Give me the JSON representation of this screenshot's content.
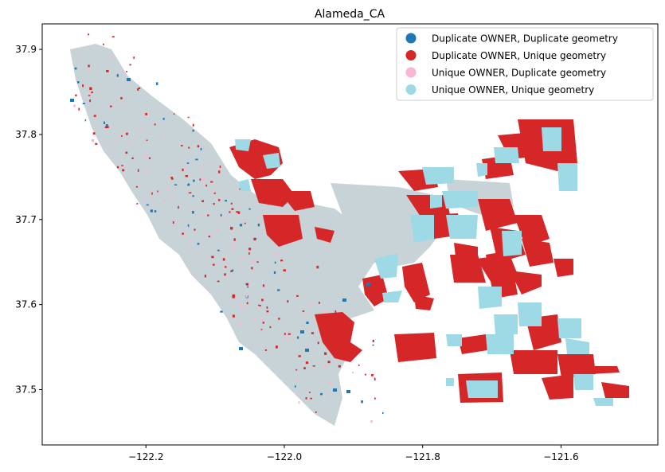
{
  "title": "Alameda_CA",
  "axes": {
    "x_ticks": [
      {
        "value": -122.2,
        "label": "−122.2"
      },
      {
        "value": -122.0,
        "label": "−122.0"
      },
      {
        "value": -121.8,
        "label": "−121.8"
      },
      {
        "value": -121.6,
        "label": "−121.6"
      }
    ],
    "y_ticks": [
      {
        "value": 37.5,
        "label": "37.5"
      },
      {
        "value": 37.6,
        "label": "37.6"
      },
      {
        "value": 37.7,
        "label": "37.7"
      },
      {
        "value": 37.8,
        "label": "37.8"
      },
      {
        "value": 37.9,
        "label": "37.9"
      }
    ],
    "xlim": [
      -122.35,
      -121.46
    ],
    "ylim": [
      37.435,
      37.93
    ]
  },
  "legend": {
    "position": "top-right",
    "items": [
      {
        "label": "Duplicate OWNER, Duplicate geometry",
        "color": "#1f77b4"
      },
      {
        "label": "Duplicate OWNER, Unique geometry",
        "color": "#d62728"
      },
      {
        "label": "Unique OWNER, Duplicate geometry",
        "color": "#f7b6d2"
      },
      {
        "label": "Unique OWNER, Unique geometry",
        "color": "#9edae5"
      }
    ]
  },
  "colors": {
    "urban_parcels": "#c8d3d8",
    "dup_dup": "#1f77b4",
    "dup_unique": "#d62728",
    "unique_dup": "#f7b6d2",
    "unique_unique": "#9edae5"
  }
}
